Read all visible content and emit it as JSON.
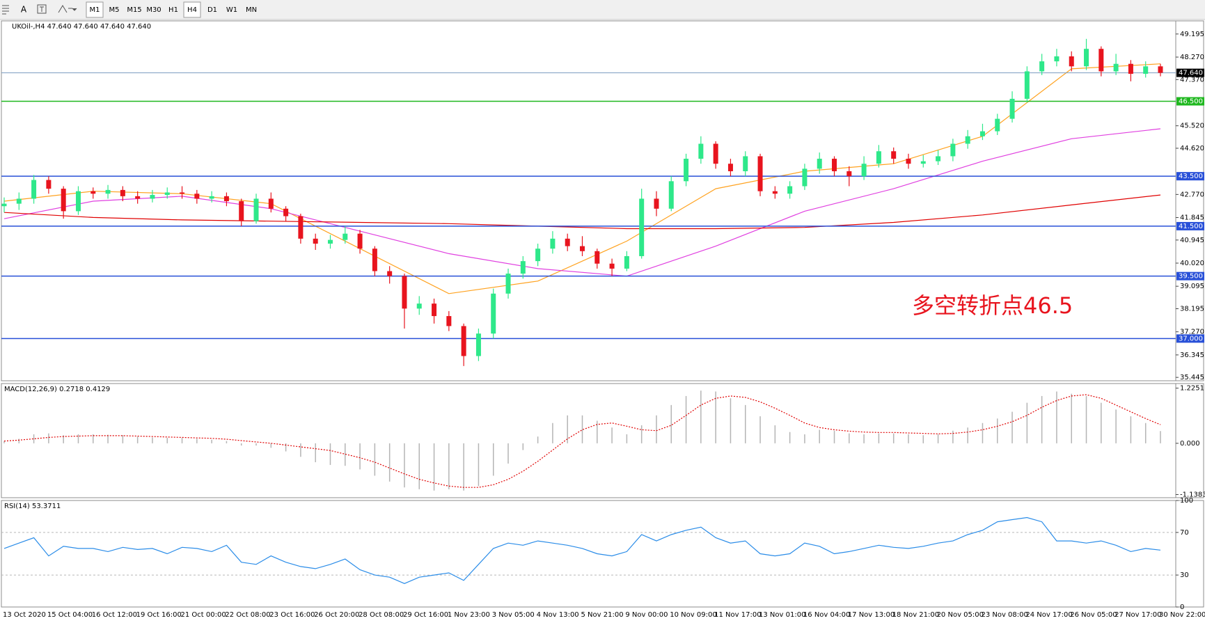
{
  "toolbar": {
    "font_button": "A",
    "timeframes": [
      "M1",
      "M5",
      "M15",
      "M30",
      "H1",
      "H4",
      "D1",
      "W1",
      "MN"
    ],
    "active": [
      0,
      5
    ]
  },
  "chart_data": [
    {
      "type": "candlestick",
      "title": "UKOil-,H4  47.640 47.640 47.640 47.640",
      "categories": [
        "13 Oct 2020",
        null,
        null,
        "15 Oct 04:00",
        null,
        null,
        "16 Oct 12:00",
        null,
        null,
        "19 Oct 16:00",
        null,
        null,
        "21 Oct 00:00",
        null,
        null,
        "22 Oct 08:00",
        null,
        null,
        "23 Oct 16:00",
        null,
        null,
        "26 Oct 20:00",
        null,
        null,
        "28 Oct 08:00",
        null,
        null,
        "29 Oct 16:00",
        null,
        null,
        "1 Nov 23:00",
        null,
        null,
        "3 Nov 05:00",
        null,
        null,
        "4 Nov 13:00",
        null,
        null,
        "5 Nov 21:00",
        null,
        null,
        "9 Nov 00:00",
        null,
        null,
        "10 Nov 09:00",
        null,
        null,
        "11 Nov 17:00",
        null,
        null,
        "13 Nov 01:00",
        null,
        null,
        "16 Nov 04:00",
        null,
        null,
        "17 Nov 13:00",
        null,
        null,
        "18 Nov 21:00",
        null,
        null,
        "20 Nov 05:00",
        null,
        null,
        "23 Nov 08:00",
        null,
        null,
        "24 Nov 17:00",
        null,
        null,
        "26 Nov 05:00",
        null,
        null,
        "27 Nov 17:00",
        null,
        null,
        "30 Nov 22:00"
      ],
      "open": [
        42.3,
        42.4,
        42.6,
        43.35,
        43.0,
        42.1,
        42.9,
        42.8,
        42.95,
        42.7,
        42.6,
        42.75,
        42.85,
        42.8,
        42.6,
        42.7,
        42.5,
        41.7,
        42.6,
        42.2,
        41.9,
        41.0,
        40.8,
        40.95,
        41.2,
        40.6,
        39.7,
        39.5,
        38.2,
        38.4,
        37.9,
        37.5,
        36.3,
        37.2,
        38.8,
        39.6,
        40.1,
        40.6,
        41.0,
        40.7,
        40.5,
        40.0,
        39.8,
        40.3,
        42.6,
        42.2,
        43.3,
        44.2,
        44.8,
        44.0,
        43.7,
        44.3,
        42.9,
        42.8,
        43.1,
        43.8,
        44.2,
        43.7,
        43.5,
        44.0,
        44.5,
        44.2,
        44.0,
        44.1,
        44.3,
        44.8,
        45.1,
        45.3,
        45.8,
        46.6,
        47.7,
        48.1,
        48.3,
        47.9,
        48.6,
        47.7,
        48.0,
        47.6,
        47.9
      ],
      "high": [
        42.65,
        42.85,
        43.55,
        43.5,
        43.1,
        43.1,
        43.05,
        43.15,
        43.1,
        42.9,
        42.95,
        43.05,
        43.1,
        42.95,
        42.9,
        42.85,
        42.6,
        42.8,
        42.85,
        42.3,
        42.0,
        41.2,
        41.15,
        41.5,
        41.35,
        40.7,
        39.9,
        39.6,
        38.7,
        38.6,
        38.1,
        37.6,
        37.4,
        39.0,
        39.8,
        40.3,
        40.8,
        41.3,
        41.2,
        41.1,
        40.6,
        40.2,
        40.5,
        43.0,
        42.9,
        43.5,
        44.4,
        45.1,
        44.9,
        44.2,
        44.5,
        44.4,
        43.1,
        43.3,
        44.0,
        44.45,
        44.3,
        43.9,
        44.3,
        44.75,
        44.65,
        44.4,
        44.35,
        44.55,
        45.0,
        45.35,
        45.6,
        46.0,
        46.9,
        47.9,
        48.4,
        48.6,
        48.5,
        49.0,
        48.7,
        48.4,
        48.15,
        48.1,
        48.0
      ],
      "low": [
        42.05,
        42.15,
        42.4,
        42.8,
        41.8,
        41.95,
        42.6,
        42.6,
        42.5,
        42.4,
        42.45,
        42.6,
        42.6,
        42.4,
        42.45,
        42.3,
        41.5,
        41.6,
        42.05,
        41.7,
        40.8,
        40.55,
        40.6,
        40.8,
        40.4,
        39.5,
        39.2,
        37.4,
        37.95,
        37.6,
        37.3,
        35.9,
        36.1,
        37.0,
        38.6,
        39.4,
        39.9,
        40.4,
        40.5,
        40.3,
        39.8,
        39.5,
        39.7,
        40.2,
        41.9,
        42.1,
        43.1,
        44.0,
        43.8,
        43.5,
        43.5,
        42.7,
        42.6,
        42.6,
        42.95,
        43.6,
        43.5,
        43.1,
        43.35,
        43.85,
        44.0,
        43.8,
        43.85,
        43.95,
        44.1,
        44.6,
        44.95,
        45.15,
        45.65,
        46.45,
        47.55,
        47.9,
        47.7,
        47.75,
        47.5,
        47.55,
        47.3,
        47.45,
        47.5
      ],
      "close": [
        42.4,
        42.6,
        43.35,
        43.0,
        42.1,
        42.9,
        42.8,
        42.95,
        42.7,
        42.6,
        42.75,
        42.85,
        42.8,
        42.6,
        42.7,
        42.5,
        41.7,
        42.6,
        42.2,
        41.9,
        41.0,
        40.8,
        40.95,
        41.2,
        40.6,
        39.7,
        39.5,
        38.2,
        38.4,
        37.9,
        37.5,
        36.3,
        37.2,
        38.8,
        39.6,
        40.1,
        40.6,
        41.0,
        40.7,
        40.5,
        40.0,
        39.8,
        40.3,
        42.6,
        42.2,
        43.3,
        44.2,
        44.8,
        44.0,
        43.7,
        44.3,
        42.9,
        42.8,
        43.1,
        43.8,
        44.2,
        43.7,
        43.5,
        44.0,
        44.5,
        44.2,
        44.0,
        44.1,
        44.3,
        44.8,
        45.1,
        45.3,
        45.8,
        46.6,
        47.7,
        48.1,
        48.3,
        47.9,
        48.6,
        47.7,
        48.0,
        47.6,
        47.9,
        47.64
      ],
      "up_color": "#2ee88a",
      "down_color": "#e8141e",
      "series": [
        {
          "color": "#ffa21f",
          "x": [
            0,
            6,
            12,
            18,
            24,
            30,
            36,
            42,
            48,
            54,
            60,
            66,
            72,
            78
          ],
          "values": [
            42.5,
            42.9,
            42.8,
            42.4,
            40.6,
            38.8,
            39.3,
            40.9,
            43.0,
            43.7,
            44.0,
            45.1,
            47.8,
            48.0
          ]
        },
        {
          "color": "#e040e0",
          "x": [
            0,
            6,
            12,
            18,
            24,
            30,
            36,
            42,
            48,
            54,
            60,
            66,
            72,
            78
          ],
          "values": [
            41.8,
            42.5,
            42.7,
            42.2,
            41.3,
            40.4,
            39.8,
            39.5,
            40.7,
            42.1,
            43.0,
            44.1,
            45.0,
            45.4
          ]
        },
        {
          "color": "#e00000",
          "x": [
            0,
            6,
            12,
            18,
            24,
            30,
            36,
            42,
            48,
            54,
            60,
            66,
            72,
            78
          ],
          "values": [
            42.05,
            41.85,
            41.75,
            41.7,
            41.65,
            41.6,
            41.5,
            41.4,
            41.4,
            41.45,
            41.65,
            41.95,
            42.35,
            42.75
          ]
        }
      ],
      "levels": [
        {
          "value": 46.5,
          "label": "46.500",
          "color": "#1fb81f"
        },
        {
          "value": 43.5,
          "label": "43.500",
          "color": "#2850d8"
        },
        {
          "value": 41.5,
          "label": "41.500",
          "color": "#2850d8"
        },
        {
          "value": 39.5,
          "label": "39.500",
          "color": "#2850d8"
        },
        {
          "value": 37,
          "label": "37.000",
          "color": "#2850d8"
        }
      ],
      "current": {
        "value": 47.64,
        "label": "47.640"
      },
      "annotation": "多空转折点46.5",
      "ylim": [
        35.31,
        49.72
      ],
      "yticks": [
        49.195,
        {
          "value": 48.27,
          "label": "48.270"
        },
        {
          "value": 47.37,
          "label": "47.370"
        },
        {
          "value": 45.52,
          "label": "45.520"
        },
        {
          "value": 44.62,
          "label": "44.620"
        },
        {
          "value": 42.77,
          "label": "42.770"
        },
        41.845,
        40.945,
        {
          "value": 40.02,
          "label": "40.020"
        },
        39.095,
        38.195,
        {
          "value": 37.27,
          "label": "37.270"
        },
        36.345,
        35.445
      ]
    },
    {
      "type": "bar",
      "title": "MACD(12,26,9) 0.2718 0.4129",
      "color": "#b4b4b4",
      "values": [
        0.05,
        0.1,
        0.2,
        0.22,
        0.18,
        0.2,
        0.2,
        0.19,
        0.18,
        0.15,
        0.13,
        0.12,
        0.12,
        0.1,
        0.08,
        0.05,
        -0.05,
        -0.05,
        -0.1,
        -0.18,
        -0.3,
        -0.42,
        -0.48,
        -0.5,
        -0.58,
        -0.72,
        -0.85,
        -0.98,
        -1.02,
        -1.05,
        -1.02,
        -1.05,
        -0.95,
        -0.72,
        -0.45,
        -0.15,
        0.15,
        0.45,
        0.62,
        0.62,
        0.5,
        0.35,
        0.2,
        0.4,
        0.62,
        0.85,
        1.05,
        1.17,
        1.15,
        1.0,
        0.85,
        0.6,
        0.4,
        0.25,
        0.2,
        0.3,
        0.28,
        0.22,
        0.2,
        0.22,
        0.22,
        0.2,
        0.18,
        0.2,
        0.28,
        0.35,
        0.45,
        0.55,
        0.7,
        0.9,
        1.05,
        1.15,
        1.1,
        1.05,
        0.9,
        0.75,
        0.6,
        0.45,
        0.2718
      ],
      "signal": {
        "color": "#e00000",
        "values": [
          0.05,
          0.07,
          0.1,
          0.13,
          0.15,
          0.16,
          0.17,
          0.17,
          0.17,
          0.16,
          0.15,
          0.14,
          0.13,
          0.12,
          0.11,
          0.09,
          0.06,
          0.03,
          0.0,
          -0.04,
          -0.08,
          -0.12,
          -0.16,
          -0.24,
          -0.32,
          -0.42,
          -0.55,
          -0.68,
          -0.8,
          -0.88,
          -0.95,
          -0.98,
          -0.98,
          -0.92,
          -0.8,
          -0.62,
          -0.4,
          -0.15,
          0.1,
          0.3,
          0.42,
          0.45,
          0.38,
          0.3,
          0.28,
          0.4,
          0.62,
          0.85,
          1.0,
          1.05,
          1.02,
          0.92,
          0.78,
          0.62,
          0.45,
          0.35,
          0.3,
          0.27,
          0.25,
          0.24,
          0.24,
          0.23,
          0.22,
          0.21,
          0.22,
          0.25,
          0.3,
          0.38,
          0.48,
          0.62,
          0.8,
          0.95,
          1.05,
          1.08,
          1.0,
          0.85,
          0.7,
          0.55,
          0.4129
        ]
      },
      "ylim": [
        -1.208,
        1.327
      ],
      "yticks": [
        1.2251,
        {
          "value": 0,
          "label": "0.000"
        },
        -1.1383
      ]
    },
    {
      "type": "line",
      "title": "RSI(14) 53.3711",
      "color": "#2a8ce8",
      "values": [
        55,
        60,
        65,
        48,
        57,
        55,
        55,
        52,
        56,
        54,
        55,
        50,
        56,
        55,
        52,
        58,
        42,
        40,
        48,
        42,
        38,
        36,
        40,
        45,
        35,
        30,
        28,
        22,
        28,
        30,
        32,
        25,
        40,
        55,
        60,
        58,
        62,
        60,
        58,
        55,
        50,
        48,
        52,
        68,
        62,
        68,
        72,
        75,
        65,
        60,
        62,
        50,
        48,
        50,
        60,
        57,
        50,
        52,
        55,
        58,
        56,
        55,
        57,
        60,
        62,
        68,
        72,
        80,
        82,
        84,
        80,
        62,
        62,
        60,
        62,
        58,
        52,
        55,
        53.3711
      ],
      "levels": [
        30,
        70
      ],
      "ylim": [
        0,
        100
      ],
      "yticks": [
        100,
        70,
        30,
        0
      ]
    }
  ]
}
